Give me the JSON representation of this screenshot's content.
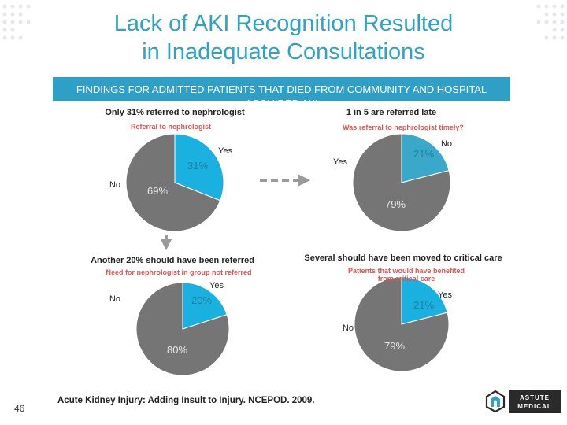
{
  "slide": {
    "title_line1": "Lack of AKI Recognition Resulted",
    "title_line2": "in Inadequate Consultations",
    "banner": "FINDINGS FOR ADMITTED PATIENTS THAT DIED FROM COMMUNITY AND HOSPITAL ACQUIRED AKI",
    "citation": "Acute Kidney Injury: Adding Insult to Injury. NCEPOD. 2009.",
    "slide_number": "46",
    "logo_line1": "ASTUTE",
    "logo_line2": "MEDICAL"
  },
  "colors": {
    "accent": "#2fa3c6",
    "highlight": "#1ab0e0",
    "gray": "#757575",
    "subtitle_red": "#e05353"
  },
  "chart_data": [
    {
      "type": "pie",
      "title": "Only 31% referred to nephrologist",
      "subtitle": "Referral to nephrologist",
      "slices": [
        {
          "label": "Yes",
          "value": 31,
          "value_label": "31%",
          "color": "#1ab0e0"
        },
        {
          "label": "No",
          "value": 69,
          "value_label": "69%",
          "color": "#757575"
        }
      ]
    },
    {
      "type": "pie",
      "title": "1 in 5 are referred late",
      "subtitle": "Was referral to nephrologist timely?",
      "slices": [
        {
          "label": "No",
          "value": 21,
          "value_label": "21%",
          "color": "#3aa8c8"
        },
        {
          "label": "Yes",
          "value": 79,
          "value_label": "79%",
          "color": "#757575"
        }
      ]
    },
    {
      "type": "pie",
      "title": "Another 20% should have been referred",
      "subtitle": "Need for nephrologist in group not referred",
      "slices": [
        {
          "label": "Yes",
          "value": 20,
          "value_label": "20%",
          "color": "#1ab0e0"
        },
        {
          "label": "No",
          "value": 80,
          "value_label": "80%",
          "color": "#757575"
        }
      ]
    },
    {
      "type": "pie",
      "title": "Several should have been moved to critical care",
      "subtitle": "Patients that would have benefited from critical care",
      "slices": [
        {
          "label": "Yes",
          "value": 21,
          "value_label": "21%",
          "color": "#1ab0e0"
        },
        {
          "label": "No",
          "value": 79,
          "value_label": "79%",
          "color": "#757575"
        }
      ]
    }
  ]
}
